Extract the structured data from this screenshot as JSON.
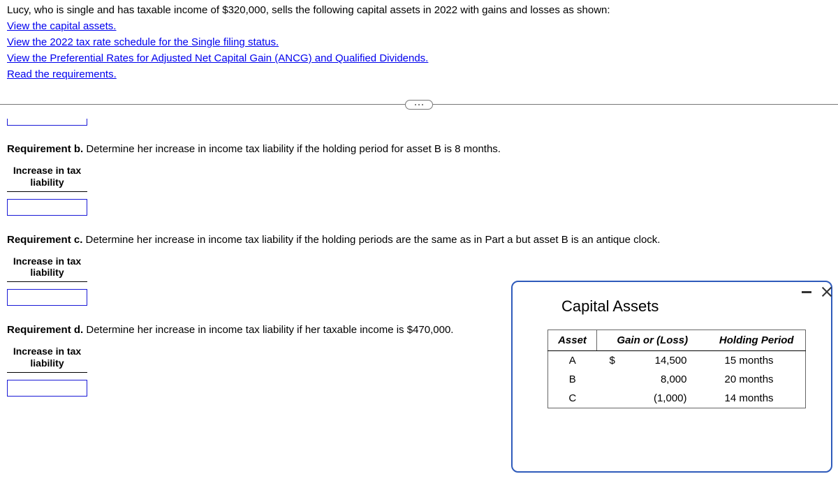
{
  "intro": "Lucy, who is single and has taxable income of $320,000, sells the following capital assets in 2022 with gains and losses as shown:",
  "links": {
    "capital_assets": "View the capital assets.",
    "tax_schedule": "View the 2022 tax rate schedule for the Single filing status.",
    "preferential": "View the Preferential Rates for Adjusted Net Capital Gain (ANCG) and Qualified Dividends.",
    "requirements": "Read the requirements."
  },
  "req_b": {
    "label_bold": "Requirement b.",
    "text": " Determine her increase in income tax liability if the holding period for asset B is 8 months.",
    "header": "Increase in tax liability"
  },
  "req_c": {
    "label_bold": "Requirement c.",
    "text": " Determine her increase in income tax liability if the holding periods are the same as in Part a but asset B is an antique clock.",
    "header": "Increase in tax liability"
  },
  "req_d": {
    "label_bold": "Requirement d.",
    "text": " Determine her increase in income tax liability if her taxable income is $470,000.",
    "header": "Increase in tax liability"
  },
  "popup": {
    "title": "Capital Assets",
    "columns": {
      "asset": "Asset",
      "gain": "Gain or (Loss)",
      "holding": "Holding Period"
    },
    "rows": [
      {
        "asset": "A",
        "dollar": "$",
        "gain": "14,500",
        "holding": "15 months"
      },
      {
        "asset": "B",
        "dollar": "",
        "gain": "8,000",
        "holding": "20 months"
      },
      {
        "asset": "C",
        "dollar": "",
        "gain": "(1,000)",
        "holding": "14 months"
      }
    ]
  }
}
